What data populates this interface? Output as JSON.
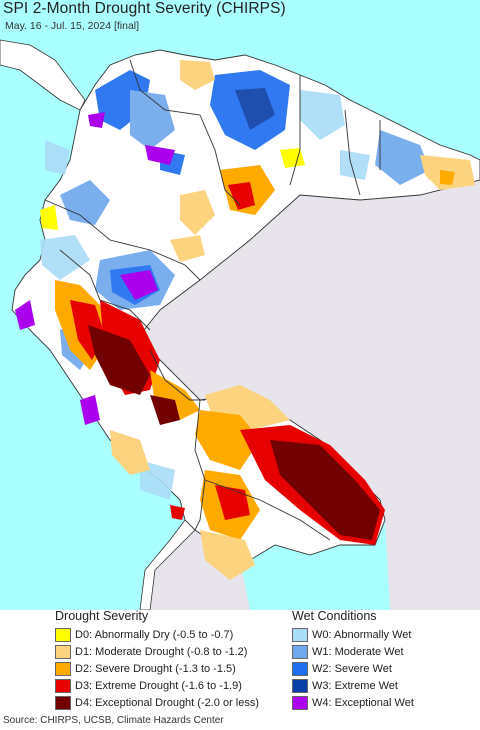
{
  "title": "SPI 2-Month Drought Severity (CHIRPS)",
  "subtitle": "May. 16 - Jul. 15, 2024 [final]",
  "legend": {
    "drought_heading": "Drought Severity",
    "wet_heading": "Wet Conditions",
    "drought_items": [
      {
        "label": "D0: Abnormally Dry (-0.5 to -0.7)",
        "color": "#ffff00"
      },
      {
        "label": "D1: Moderate Drought (-0.8 to -1.2)",
        "color": "#fcd37f"
      },
      {
        "label": "D2: Severe Drought (-1.3 to -1.5)",
        "color": "#ffaa00"
      },
      {
        "label": "D3: Extreme Drought (-1.6 to -1.9)",
        "color": "#e60000"
      },
      {
        "label": "D4: Exceptional Drought (-2.0 or less)",
        "color": "#730000"
      }
    ],
    "wet_items": [
      {
        "label": "W0: Abnormally Wet",
        "color": "#aaddf7"
      },
      {
        "label": "W1: Moderate Wet",
        "color": "#6fa8ec"
      },
      {
        "label": "W2: Severe Wet",
        "color": "#1f6ef0"
      },
      {
        "label": "W3: Extreme Wet",
        "color": "#0b3fa8"
      },
      {
        "label": "W4: Exceptional Wet",
        "color": "#aa00ee"
      }
    ]
  },
  "map_colors": {
    "ocean": "#aaffff",
    "outside": "#e8e4ec",
    "land": "#ffffff",
    "border": "#333333"
  },
  "source": "Source: CHIRPS, UCSB, Climate Hazards Center"
}
